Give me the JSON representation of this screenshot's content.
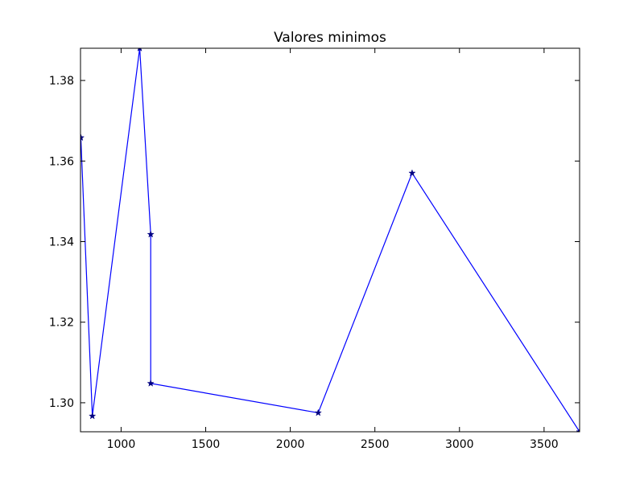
{
  "chart_data": {
    "type": "line",
    "title": "Valores minimos",
    "xlabel": "",
    "ylabel": "",
    "xlim": [
      760,
      3710
    ],
    "ylim": [
      1.2928,
      1.388
    ],
    "xticks": [
      1000,
      1500,
      2000,
      2500,
      3000,
      3500
    ],
    "yticks": [
      1.3,
      1.32,
      1.34,
      1.36,
      1.38
    ],
    "xtick_labels": [
      "1000",
      "1500",
      "2000",
      "2500",
      "3000",
      "3500"
    ],
    "ytick_labels": [
      "1.30",
      "1.32",
      "1.34",
      "1.36",
      "1.38"
    ],
    "grid": false,
    "legend": "none",
    "series": [
      {
        "color": "#0000ff",
        "marker": "star",
        "marker_color": "#000080",
        "x": [
          762,
          830,
          1110,
          1175,
          1175,
          2165,
          2720,
          3710
        ],
        "y": [
          1.3658,
          1.2967,
          1.388,
          1.3418,
          1.3048,
          1.2975,
          1.357,
          1.2928
        ]
      }
    ]
  }
}
